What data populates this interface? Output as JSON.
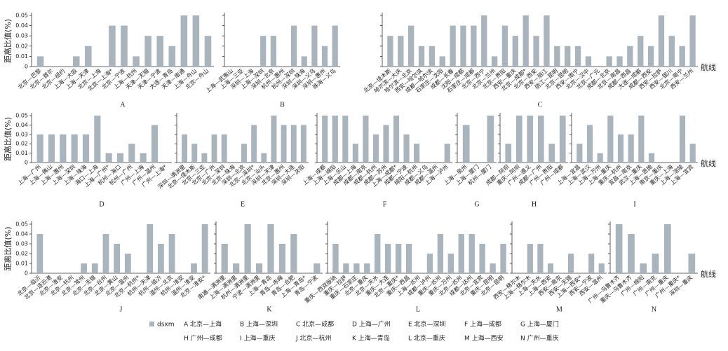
{
  "chart_data": [
    {
      "type": "bar",
      "title": "A",
      "y_label": "距离比值(%)",
      "color": "#a9b4bc",
      "ylim": [
        0,
        0.05
      ],
      "yticks": [
        0,
        0.01,
        0.02,
        0.03,
        0.04,
        0.05
      ],
      "categories": [
        "北京—巴黎",
        "北京—首尔",
        "北京—纽约",
        "上海—大阪",
        "上海—天津",
        "北京—上海",
        "北京—上海*",
        "北京—宁波",
        "上海—杭州",
        "天津—无锡",
        "天津—宁波",
        "大连—青岛",
        "天津—南通",
        "上海—舟山",
        "北京—舟山"
      ],
      "values": [
        0.01,
        0,
        0,
        0.01,
        0.02,
        0,
        0.04,
        0.04,
        0.01,
        0.03,
        0.03,
        0.02,
        0.05,
        0.05,
        0.03
      ]
    },
    {
      "type": "bar",
      "title": "B",
      "color": "#a9b4bc",
      "ylim": [
        0,
        0.05
      ],
      "yticks": [
        0,
        0.01,
        0.02,
        0.03,
        0.04,
        0.05
      ],
      "categories": [
        "上海—武夷山",
        "上海—三亚",
        "深圳—上海",
        "上海—深圳",
        "深圳—北京",
        "杭州—惠州",
        "杭州—深圳",
        "深圳—珠海",
        "深圳—义乌",
        "深圳—惠州",
        "珠海—义乌"
      ],
      "values": [
        0,
        0,
        0,
        0.03,
        0.03,
        0,
        0.04,
        0.01,
        0.04,
        0.02,
        0.04
      ]
    },
    {
      "type": "bar",
      "title": "C",
      "x_label": "航线",
      "color": "#a9b4bc",
      "ylim": [
        0,
        0.05
      ],
      "yticks": [
        0,
        0.01,
        0.02,
        0.03,
        0.04,
        0.05
      ],
      "categories": [
        "北京—佳木斯",
        "哈尔滨—大庆",
        "哈尔滨—北京",
        "西安—哈尔滨",
        "成都—哈尔滨",
        "石家庄—沈阳",
        "成都—长春",
        "沈阳—成都",
        "石家庄—成都",
        "北京—西宁",
        "北京—兰州",
        "北京—贵阳",
        "西安—重庆",
        "北京—成都*",
        "北京—西安",
        "西安—丽江",
        "丽江—昆明",
        "北京—昆明",
        "西安—南宁",
        "北京—汉中",
        "北京—广元",
        "成都—北京",
        "北京—南昌",
        "成都—西昌",
        "大连—成都",
        "成都—西安",
        "西安—拉萨",
        "西安—银川",
        "北京—南宁",
        "西安—兰州"
      ],
      "values": [
        0.03,
        0.03,
        0.04,
        0.02,
        0.02,
        0.01,
        0.04,
        0.04,
        0.04,
        0.05,
        0.01,
        0.04,
        0.03,
        0.05,
        0.03,
        0.05,
        0.02,
        0.02,
        0.02,
        0.01,
        0,
        0.01,
        0.01,
        0.02,
        0.03,
        0.02,
        0.05,
        0.03,
        0.02,
        0.05
      ]
    },
    {
      "type": "bar",
      "title": "D",
      "y_label": "距离比值(%)",
      "color": "#a9b4bc",
      "ylim": [
        0,
        0.05
      ],
      "yticks": [
        0,
        0.01,
        0.02,
        0.03,
        0.04,
        0.05
      ],
      "categories": [
        "上海—广州",
        "上海—佛山",
        "上海—惠州",
        "上海—深圳",
        "上海—珠海",
        "海口—上海",
        "上海—广州*",
        "杭州—海口",
        "杭州—广州",
        "广州—上海",
        "广州—温州",
        "广州—上海*"
      ],
      "values": [
        0.03,
        0.03,
        0.03,
        0.03,
        0.03,
        0.05,
        0.01,
        0.01,
        0.02,
        0.01,
        0.04,
        0
      ]
    },
    {
      "type": "bar",
      "title": "E",
      "color": "#a9b4bc",
      "ylim": [
        0,
        0.05
      ],
      "yticks": [
        0,
        0.01,
        0.02,
        0.03,
        0.04,
        0.05
      ],
      "categories": [
        "深圳—满洲里",
        "北京—佳木斯",
        "北京—三亚",
        "北京—广州",
        "北京—深圳",
        "北京—珠海",
        "深圳—北京",
        "北京—深圳*",
        "北京—汕头",
        "深圳—天津",
        "北京—惠州",
        "深圳—大连",
        "深圳—沈阳"
      ],
      "values": [
        0.03,
        0.02,
        0.01,
        0.03,
        0.03,
        0,
        0.02,
        0.04,
        0.01,
        0.05,
        0.04,
        0.04,
        0.04
      ]
    },
    {
      "type": "bar",
      "title": "F",
      "color": "#a9b4bc",
      "ylim": [
        0,
        0.05
      ],
      "yticks": [
        0,
        0.01,
        0.02,
        0.03,
        0.04,
        0.05
      ],
      "categories": [
        "上海—成都",
        "上海—绵阳",
        "上海—乐山",
        "成都—上海",
        "成都—南京",
        "成都—杭州",
        "成都—苏州",
        "上海—成都*",
        "成都—宁波",
        "绵阳—杭州",
        "成都—义乌",
        "成都—温州",
        "上海—泸州"
      ],
      "values": [
        0.05,
        0.05,
        0.05,
        0.02,
        0.05,
        0.03,
        0.04,
        0.05,
        0.03,
        0.02,
        0,
        0,
        0.02
      ]
    },
    {
      "type": "bar",
      "title": "G",
      "color": "#a9b4bc",
      "ylim": [
        0,
        0.05
      ],
      "yticks": [
        0,
        0.01,
        0.02,
        0.03,
        0.04,
        0.05
      ],
      "categories": [
        "上海—泉州",
        "上海—厦门",
        "杭州—厦门"
      ],
      "values": [
        0.04,
        0,
        0.05
      ]
    },
    {
      "type": "bar",
      "title": "H",
      "color": "#a9b4bc",
      "ylim": [
        0,
        0.05
      ],
      "yticks": [
        0,
        0.01,
        0.02,
        0.03,
        0.04,
        0.05
      ],
      "categories": [
        "成都—阿坝",
        "重庆—阿坝",
        "广州—遵义",
        "成都—广州",
        "广州—贵阳",
        "广州—成都"
      ],
      "values": [
        0.02,
        0.05,
        0.05,
        0.05,
        0.02,
        0.05
      ]
    },
    {
      "type": "bar",
      "title": "I",
      "x_label": "航线",
      "color": "#a9b4bc",
      "ylim": [
        0,
        0.05
      ],
      "yticks": [
        0,
        0.01,
        0.02,
        0.03,
        0.04,
        0.05
      ],
      "categories": [
        "上海—宜昌",
        "上海—武汉",
        "上海—万州",
        "上海—重庆",
        "重庆—杭州",
        "宜昌—南京",
        "武汉—重庆",
        "上海—恩施",
        "南京—重庆",
        "重庆—上海",
        "上海—涪陵",
        "上海—宜宾"
      ],
      "values": [
        0.02,
        0.04,
        0.01,
        0.05,
        0.03,
        0.03,
        0.05,
        0.01,
        0,
        0,
        0.05,
        0.02
      ]
    },
    {
      "type": "bar",
      "title": "J",
      "y_label": "距离比值(%)",
      "color": "#a9b4bc",
      "ylim": [
        0,
        0.05
      ],
      "yticks": [
        0,
        0.01,
        0.02,
        0.03,
        0.04,
        0.05
      ],
      "categories": [
        "北京—临沂",
        "北京—连云港",
        "北京—淮安",
        "北京—杭州",
        "北京—常州",
        "北京—无锡",
        "北京—台州",
        "北京—黄山",
        "北京—温州",
        "北京—杭州*",
        "杭州—天津",
        "杭州—临沂",
        "温州—北京",
        "杭州—淮安",
        "温州—淮安",
        "北京—淮安*"
      ],
      "values": [
        0.04,
        0,
        0,
        0,
        0.01,
        0.01,
        0.04,
        0.03,
        0.02,
        0,
        0.05,
        0.03,
        0.04,
        0,
        0.01,
        0.05
      ]
    },
    {
      "type": "bar",
      "title": "K",
      "color": "#a9b4bc",
      "ylim": [
        0,
        0.05
      ],
      "yticks": [
        0,
        0.01,
        0.02,
        0.03,
        0.04,
        0.05
      ],
      "categories": [
        "南通—满洲里",
        "上海—满洲里",
        "杭州—满洲里",
        "宁波—满洲里",
        "上海—青岛",
        "青岛—赤峰",
        "青岛—合肥",
        "上海—青岛*",
        "青岛—宁波"
      ],
      "values": [
        0.03,
        0.01,
        0.05,
        0.01,
        0.05,
        0.03,
        0.04,
        0,
        0.01
      ]
    },
    {
      "type": "bar",
      "title": "L",
      "color": "#a9b4bc",
      "ylim": [
        0,
        0.05
      ],
      "yticks": [
        0,
        0.01,
        0.02,
        0.03,
        0.04,
        0.05
      ],
      "categories": [
        "重庆—西双版纳",
        "重庆—拉萨",
        "重庆—石家庄",
        "北京—重庆",
        "北京—天水",
        "重庆—大连",
        "北京—重庆*",
        "重庆—西昌",
        "上海—达州",
        "成都—泸州",
        "重庆—达州",
        "重庆—万州",
        "北京—达州",
        "成都—达州",
        "北京—宜宾",
        "重庆—昆明",
        "北京—昆明"
      ],
      "values": [
        0.03,
        0.01,
        0.01,
        0.01,
        0.04,
        0.03,
        0.03,
        0.03,
        0,
        0.02,
        0.04,
        0.02,
        0.04,
        0.04,
        0.03,
        0.01,
        0.03
      ]
    },
    {
      "type": "bar",
      "title": "M",
      "color": "#a9b4bc",
      "ylim": [
        0,
        0.05
      ],
      "yticks": [
        0,
        0.01,
        0.02,
        0.03,
        0.04,
        0.05
      ],
      "categories": [
        "西安—格尔木",
        "上海—格尔木",
        "上海—天水",
        "上海—西安",
        "西安—南京",
        "西安—无锡",
        "上海—西安*",
        "西安—宁波",
        "西安—温州"
      ],
      "values": [
        0,
        0.03,
        0.03,
        0.01,
        0,
        0.02,
        0,
        0.02,
        0.01
      ]
    },
    {
      "type": "bar",
      "title": "N",
      "x_label": "航线",
      "color": "#a9b4bc",
      "ylim": [
        0,
        0.05
      ],
      "yticks": [
        0,
        0.01,
        0.02,
        0.03,
        0.04,
        0.05
      ],
      "categories": [
        "广州—乌鲁木齐",
        "重庆—乌鲁木齐",
        "广州—绵阳",
        "广州—南充",
        "广州—重庆",
        "广州—重庆*",
        "深圳—重庆"
      ],
      "values": [
        0.05,
        0.04,
        0.01,
        0.02,
        0.05,
        0,
        0.02
      ]
    }
  ],
  "legend": {
    "marker_label": "dsxm",
    "color": "#a9b4bc",
    "entries": [
      "A 北京—上海",
      "B 上海—深圳",
      "C 北京—成都",
      "D 上海—广州",
      "E 北京—深圳",
      "F 上海—成都",
      "G 上海—厦门",
      "H 广州—成都",
      "I 上海—重庆",
      "J 北京—杭州",
      "K 上海—青岛",
      "L 北京—重庆",
      "M 上海—西安",
      "N 广州—重庆"
    ]
  }
}
